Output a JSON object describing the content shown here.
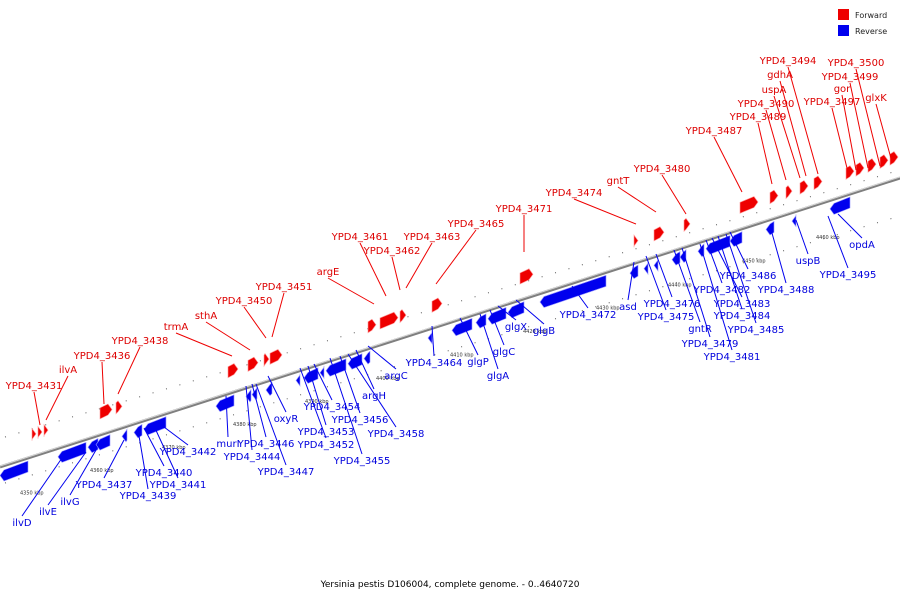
{
  "caption": "Yersinia pestis D106004, complete genome. - 0..4640720",
  "legend": [
    {
      "label": "Forward",
      "color": "#ee0000"
    },
    {
      "label": "Reverse",
      "color": "#0000ee"
    }
  ],
  "colors": {
    "forward": "#ee0000",
    "reverse": "#0000ee",
    "backbone": "#808080"
  },
  "kbp_ticks": [
    "4350 kbp",
    "4360 kbp",
    "4370 kbp",
    "4380 kbp",
    "4390 kbp",
    "4400 kbp",
    "4410 kbp",
    "4420 kbp",
    "4430 kbp",
    "4440 kbp",
    "4450 kbp",
    "4460 kbp"
  ],
  "forward_genes": [
    "YPD4_3431",
    "ilvA",
    "YPD4_3436",
    "YPD4_3438",
    "trmA",
    "sthA",
    "YPD4_3450",
    "YPD4_3451",
    "argE",
    "YPD4_3461",
    "YPD4_3462",
    "YPD4_3463",
    "YPD4_3465",
    "YPD4_3471",
    "YPD4_3474",
    "gntT",
    "YPD4_3480",
    "YPD4_3487",
    "YPD4_3489",
    "YPD4_3490",
    "uspA",
    "gdhA",
    "YPD4_3494",
    "YPD4_3497",
    "gor",
    "YPD4_3499",
    "YPD4_3500",
    "glxK"
  ],
  "reverse_genes": [
    "ilvD",
    "ilvE",
    "ilvG",
    "YPD4_3437",
    "YPD4_3439",
    "YPD4_3440",
    "YPD4_3441",
    "YPD4_3442",
    "murI",
    "YPD4_3444",
    "YPD4_3446",
    "YPD4_3447",
    "oxyR",
    "YPD4_3452",
    "YPD4_3453",
    "YPD4_3454",
    "YPD4_3455",
    "YPD4_3456",
    "YPD4_3458",
    "argH",
    "argC",
    "YPD4_3464",
    "glgP",
    "glgA",
    "glgC",
    "glgX",
    "glgB",
    "YPD4_3472",
    "asd",
    "YPD4_3475",
    "YPD4_3476",
    "gntR",
    "YPD4_3479",
    "YPD4_3481",
    "YPD4_3482",
    "YPD4_3483",
    "YPD4_3484",
    "YPD4_3485",
    "YPD4_3486",
    "YPD4_3488",
    "uspB",
    "opdA",
    "YPD4_3495"
  ]
}
